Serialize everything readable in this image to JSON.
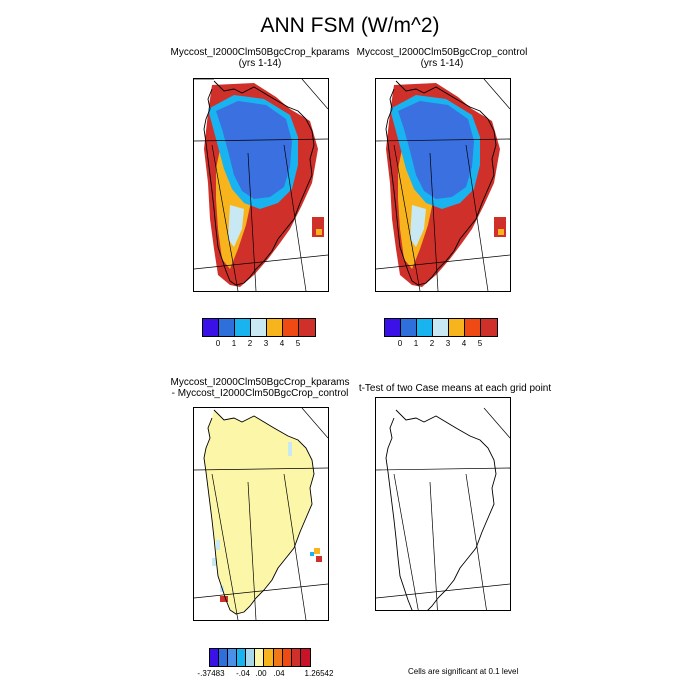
{
  "figure": {
    "title": "ANN FSM (W/m^2)"
  },
  "panels": {
    "top_left": {
      "case": "Myccost_I2000Clm50BgcCrop_kparams",
      "years": "(yrs 1-14)"
    },
    "top_right": {
      "case": "Myccost_I2000Clm50BgcCrop_control",
      "years": "(yrs 1-14)"
    },
    "bottom_left": {
      "case_a": "Myccost_I2000Clm50BgcCrop_kparams",
      "case_b": "- Myccost_I2000Clm50BgcCrop_control"
    },
    "bottom_right": {
      "title": "t-Test of two Case means at each grid point",
      "note": "Cells are significant at 0.1 level"
    }
  },
  "colorbar_abs": {
    "colors": [
      "#3a12e8",
      "#2f6fdc",
      "#19b3f0",
      "#c8e8f4",
      "#f8b41c",
      "#f04a14",
      "#d0302a"
    ],
    "labels": [
      "0",
      "1",
      "2",
      "3",
      "4",
      "5"
    ]
  },
  "colorbar_diff": {
    "colors": [
      "#3a12e8",
      "#2f6fdc",
      "#4a90e8",
      "#19b3f0",
      "#a8d8ec",
      "#fcf7a8",
      "#f8b41c",
      "#f07818",
      "#f04a14",
      "#d0302a",
      "#c81428"
    ],
    "labels": [
      "-.37483",
      "-.04",
      ".00",
      ".04",
      "1.26542"
    ]
  },
  "map_colors": {
    "blue": "#3a70e0",
    "cyan": "#19b3f0",
    "light_blue": "#c8e8f4",
    "yellow": "#f8b41c",
    "red": "#d0302a",
    "diff_fill": "#fcf7a8"
  }
}
